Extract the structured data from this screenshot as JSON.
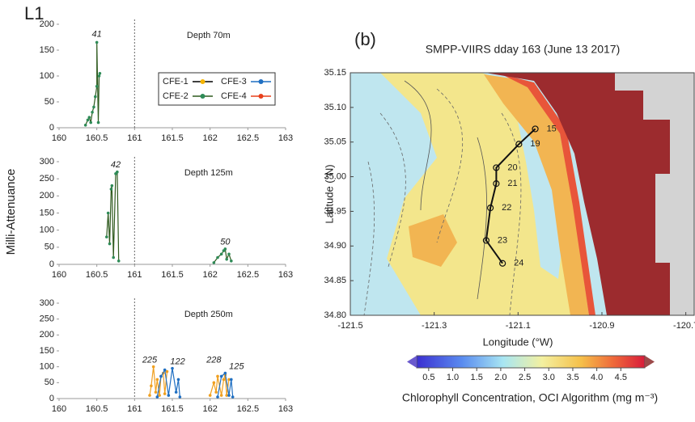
{
  "chart_data": [
    {
      "type": "line",
      "panel_label": "L1",
      "ylabel": "Milli-Attenuance",
      "annotation": "Depth 70m",
      "xlim": [
        160,
        163
      ],
      "xticks": [
        160,
        160.5,
        161,
        161.5,
        162,
        162.5,
        163
      ],
      "ylim": [
        0,
        200
      ],
      "yticks": [
        0,
        50,
        100,
        150,
        200
      ],
      "vline": 161,
      "legend": "upper right",
      "series": [
        {
          "name": "CFE-1",
          "color": "#000000",
          "marker_color": "#f5b400",
          "x": [],
          "values": []
        },
        {
          "name": "CFE-2",
          "color": "#2f5a1e",
          "marker_color": "#2e8b57",
          "x": [
            160.35,
            160.38,
            160.4,
            160.42,
            160.44,
            160.46,
            160.48,
            160.5,
            160.5,
            160.52,
            160.53,
            160.54
          ],
          "values": [
            5,
            15,
            20,
            10,
            30,
            40,
            60,
            80,
            165,
            10,
            100,
            105
          ]
        },
        {
          "name": "CFE-3",
          "color": "#1f6fc2",
          "marker_color": "#1f6fc2",
          "x": [],
          "values": []
        },
        {
          "name": "CFE-4",
          "color": "#e8401c",
          "marker_color": "#e8401c",
          "x": [],
          "values": []
        }
      ],
      "labels": [
        {
          "text": "41",
          "x": 160.5,
          "y": 180
        }
      ]
    },
    {
      "type": "line",
      "annotation": "Depth 125m",
      "xlim": [
        160,
        163
      ],
      "xticks": [
        160,
        160.5,
        161,
        161.5,
        162,
        162.5,
        163
      ],
      "ylim": [
        0,
        300
      ],
      "yticks": [
        0,
        50,
        100,
        150,
        200,
        250,
        300
      ],
      "vline": 161,
      "series": [
        {
          "name": "CFE-2",
          "color": "#2f5a1e",
          "marker_color": "#2e8b57",
          "x": [
            160.63,
            160.65,
            160.67,
            160.69,
            160.7,
            160.72,
            160.75,
            160.77,
            160.79,
            null,
            162.05,
            162.1,
            162.15,
            162.18,
            162.2,
            162.22,
            162.25,
            162.28
          ],
          "values": [
            80,
            150,
            60,
            220,
            230,
            20,
            265,
            270,
            10,
            null,
            5,
            20,
            30,
            40,
            45,
            15,
            30,
            10
          ]
        }
      ],
      "labels": [
        {
          "text": "42",
          "x": 160.75,
          "y": 290
        },
        {
          "text": "50",
          "x": 162.2,
          "y": 65
        }
      ]
    },
    {
      "type": "line",
      "annotation": "Depth 250m",
      "xlim": [
        160,
        163
      ],
      "xticks": [
        160,
        160.5,
        161,
        161.5,
        162,
        162.5,
        163
      ],
      "ylim": [
        0,
        300
      ],
      "yticks": [
        0,
        50,
        100,
        150,
        200,
        250,
        300
      ],
      "vline": 161,
      "series": [
        {
          "name": "CFE-1",
          "color": "#f0a020",
          "marker_color": "#f0a020",
          "x": [
            161.2,
            161.22,
            161.25,
            161.28,
            161.3,
            161.33,
            161.35,
            161.38,
            161.4,
            161.43,
            null,
            162.0,
            162.05,
            162.08,
            162.1,
            162.15,
            162.18,
            162.2,
            162.22,
            162.25
          ],
          "values": [
            10,
            40,
            100,
            20,
            60,
            10,
            70,
            80,
            15,
            85,
            null,
            10,
            50,
            20,
            70,
            10,
            60,
            75,
            10,
            60
          ]
        },
        {
          "name": "CFE-3",
          "color": "#1f6fc2",
          "marker_color": "#1f6fc2",
          "x": [
            161.3,
            161.35,
            161.4,
            161.45,
            161.5,
            161.55,
            161.58,
            161.6,
            null,
            162.1,
            162.15,
            162.2,
            162.25,
            162.28,
            162.3
          ],
          "values": [
            5,
            70,
            90,
            10,
            95,
            20,
            60,
            5,
            null,
            5,
            70,
            80,
            10,
            60,
            5
          ]
        }
      ],
      "labels": [
        {
          "text": "225",
          "x": 161.2,
          "y": 120
        },
        {
          "text": "122",
          "x": 161.57,
          "y": 115
        },
        {
          "text": "228",
          "x": 162.05,
          "y": 120
        },
        {
          "text": "125",
          "x": 162.35,
          "y": 100
        }
      ]
    },
    {
      "type": "map",
      "panel_label": "(b)",
      "title": "SMPP-VIIRS dday 163 (June 13 2017)",
      "xlabel": "Longitude (°W)",
      "ylabel": "Latitude (°N)",
      "xlim": [
        -121.5,
        -120.68
      ],
      "xticks": [
        -121.5,
        -121.3,
        -121.1,
        -120.9,
        -120.7
      ],
      "ylim": [
        34.8,
        35.15
      ],
      "yticks": [
        {
          "value": 34.8,
          "label": "34.80"
        },
        34.85,
        {
          "value": 34.9,
          "label": "34.90"
        },
        34.95,
        {
          "value": 35.0,
          "label": "35.00"
        },
        35.05,
        {
          "value": 35.1,
          "label": "35.10"
        },
        35.15
      ],
      "stations": [
        {
          "label": "15",
          "lon": -121.059,
          "lat": 35.069
        },
        {
          "label": "19",
          "lon": -121.098,
          "lat": 35.047
        },
        {
          "label": "20",
          "lon": -121.152,
          "lat": 35.013
        },
        {
          "label": "21",
          "lon": -121.152,
          "lat": 34.99
        },
        {
          "label": "22",
          "lon": -121.166,
          "lat": 34.955
        },
        {
          "label": "23",
          "lon": -121.176,
          "lat": 34.908
        },
        {
          "label": "24",
          "lon": -121.137,
          "lat": 34.875
        }
      ],
      "colorbar_label": "Chlorophyll Concentration, OCI Algorithm (mg m⁻³)",
      "clim": [
        0.25,
        5
      ],
      "cticks": [
        0.5,
        {
          "value": 1,
          "label": "1.0"
        },
        1.5,
        {
          "value": 2,
          "label": "2.0"
        },
        2.5,
        {
          "value": 3,
          "label": "3.0"
        },
        3.5,
        {
          "value": 4,
          "label": "4.0"
        },
        4.5
      ]
    }
  ]
}
